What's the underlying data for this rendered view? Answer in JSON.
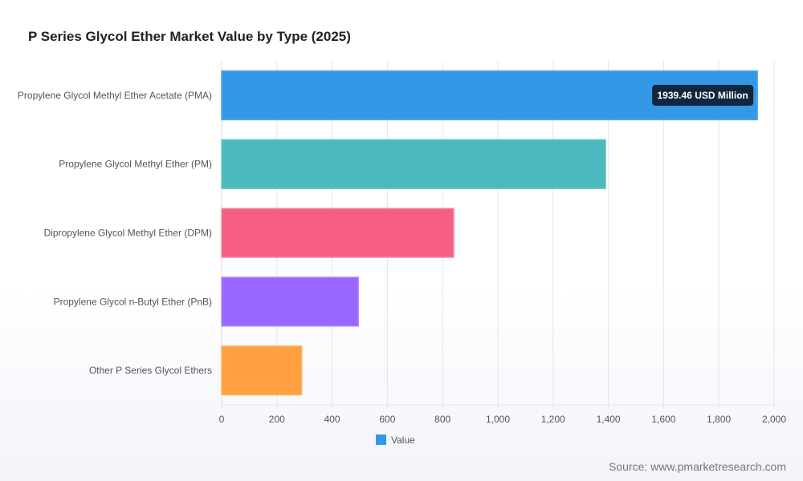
{
  "source": "Source: www.pmarketresearch.com",
  "chart_data": {
    "type": "bar",
    "orientation": "horizontal",
    "title": "P Series Glycol Ether Market Value by Type (2025)",
    "categories": [
      "Propylene Glycol Methyl Ether Acetate (PMA)",
      "Propylene Glycol Methyl Ether (PM)",
      "Dipropylene Glycol Methyl Ether (DPM)",
      "Propylene Glycol n-Butyl Ether (PnB)",
      "Other P Series Glycol Ethers"
    ],
    "series": [
      {
        "name": "Value",
        "values": [
          1939.46,
          1390,
          840,
          495,
          290
        ]
      }
    ],
    "colors": [
      "#3399e6",
      "#4bb9bd",
      "#f65f81",
      "#9966ff",
      "#ff9f40"
    ],
    "border_colors": [
      "#56a5e8",
      "#6cc8c8",
      "#f78aa2",
      "#b08bff",
      "#ffb367"
    ],
    "xlim": [
      0,
      2000
    ],
    "xticks": [
      "0",
      "200",
      "400",
      "600",
      "800",
      "1,000",
      "1,200",
      "1,400",
      "1,600",
      "1,800",
      "2,000"
    ],
    "tooltip": {
      "category_index": 0,
      "text": "1939.46 USD Million"
    },
    "legend": {
      "position": "bottom",
      "label": "Value",
      "color": "#3399e6"
    },
    "grid": true
  }
}
